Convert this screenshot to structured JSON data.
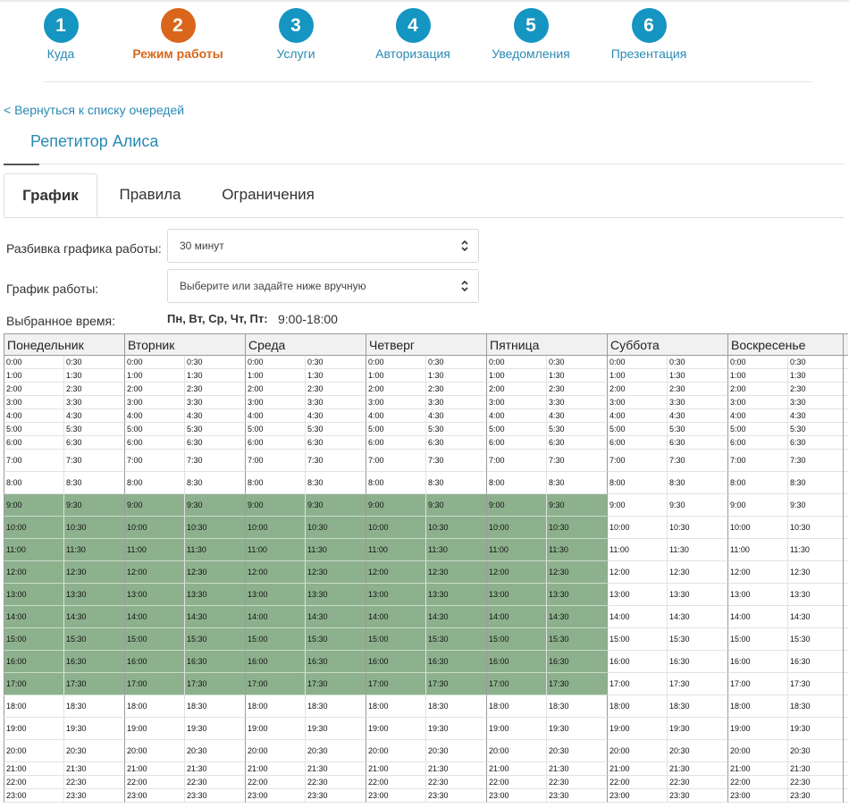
{
  "steps": [
    {
      "num": "1",
      "label": "Куда",
      "active": false
    },
    {
      "num": "2",
      "label": "Режим работы",
      "active": true
    },
    {
      "num": "3",
      "label": "Услуги",
      "active": false
    },
    {
      "num": "4",
      "label": "Авторизация",
      "active": false
    },
    {
      "num": "5",
      "label": "Уведомления",
      "active": false
    },
    {
      "num": "6",
      "label": "Презентация",
      "active": false
    }
  ],
  "back_link": "< Вернуться к списку очередей",
  "queue_title": "Репетитор Алиса",
  "tabs": [
    {
      "label": "График",
      "active": true
    },
    {
      "label": "Правила",
      "active": false
    },
    {
      "label": "Ограничения",
      "active": false
    }
  ],
  "form": {
    "split_label": "Разбивка графика работы:",
    "split_value": "30 минут",
    "schedule_label": "График работы:",
    "schedule_placeholder": "Выберите или задайте ниже вручную",
    "selected_label": "Выбранное время:",
    "selected_days": "Пн, Вт, Ср, Чт, Пт:",
    "selected_time": "9:00-18:00"
  },
  "select_icon": "chevron-up-down-icon",
  "schedule": {
    "days": [
      "Понедельник",
      "Вторник",
      "Среда",
      "Четверг",
      "Пятница",
      "Суббота",
      "Воскресенье"
    ],
    "active_days": [
      true,
      true,
      true,
      true,
      true,
      false,
      false
    ],
    "active_hours": [
      9,
      10,
      11,
      12,
      13,
      14,
      15,
      16,
      17
    ],
    "hours": [
      [
        "0:00",
        "0:30"
      ],
      [
        "1:00",
        "1:30"
      ],
      [
        "2:00",
        "2:30"
      ],
      [
        "3:00",
        "3:30"
      ],
      [
        "4:00",
        "4:30"
      ],
      [
        "5:00",
        "5:30"
      ],
      [
        "6:00",
        "6:30"
      ],
      [
        "7:00",
        "7:30"
      ],
      [
        "8:00",
        "8:30"
      ],
      [
        "9:00",
        "9:30"
      ],
      [
        "10:00",
        "10:30"
      ],
      [
        "11:00",
        "11:30"
      ],
      [
        "12:00",
        "12:30"
      ],
      [
        "13:00",
        "13:30"
      ],
      [
        "14:00",
        "14:30"
      ],
      [
        "15:00",
        "15:30"
      ],
      [
        "16:00",
        "16:30"
      ],
      [
        "17:00",
        "17:30"
      ],
      [
        "18:00",
        "18:30"
      ],
      [
        "19:00",
        "19:30"
      ],
      [
        "20:00",
        "20:30"
      ],
      [
        "21:00",
        "21:30"
      ],
      [
        "22:00",
        "22:30"
      ],
      [
        "23:00",
        "23:30"
      ]
    ]
  },
  "colors": {
    "step": "#1595c1",
    "step_active": "#d9661b",
    "link": "#2a8ab3",
    "slot_selected": "#8db18d"
  }
}
